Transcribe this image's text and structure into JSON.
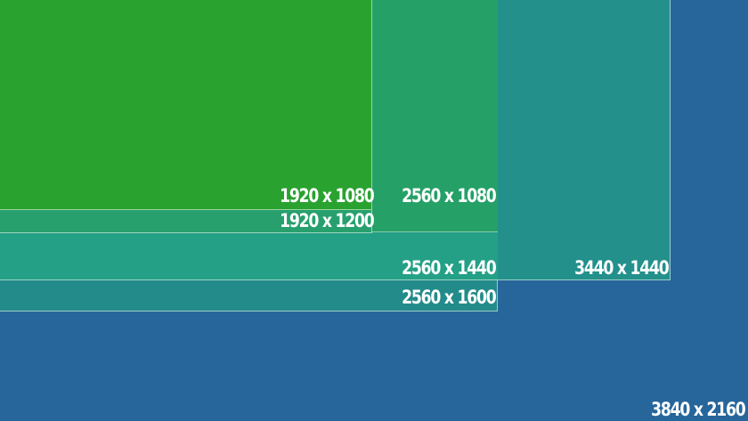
{
  "resolutions": [
    {
      "key": "r3840",
      "label": "3840 x 2160",
      "color": "#26669b"
    },
    {
      "key": "r3440",
      "label": "3440 x 1440",
      "color": "#23908c"
    },
    {
      "key": "r2560x1600",
      "label": "2560 x 1600",
      "color": "#238b8a"
    },
    {
      "key": "r2560x1440",
      "label": "2560 x 1440",
      "color": "#24a086"
    },
    {
      "key": "r2560x1080",
      "label": "2560 x 1080",
      "color": "#25a067"
    },
    {
      "key": "r1920x1200",
      "label": "1920 x 1200",
      "color": "#27a06e"
    },
    {
      "key": "r1920x1080",
      "label": "1920 x 1080",
      "color": "#2aa230"
    }
  ]
}
